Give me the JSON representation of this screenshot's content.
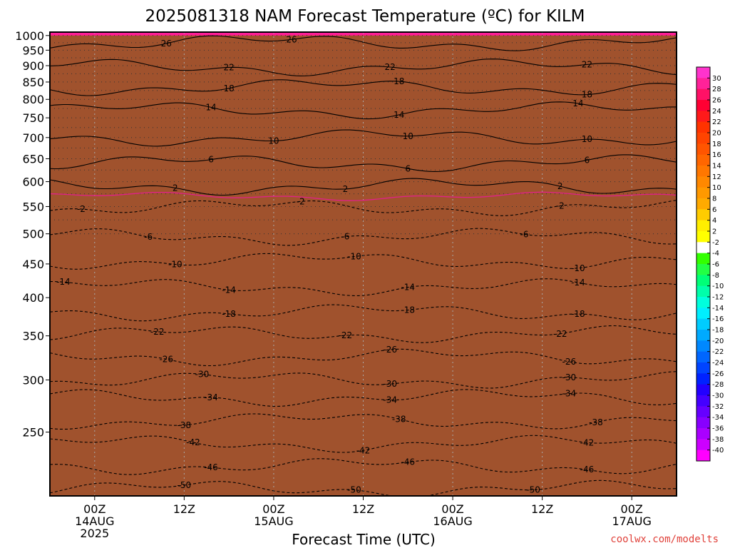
{
  "chart_data": {
    "type": "heatmap",
    "title": "2025081318 NAM Forecast Temperature (ºC) for KILM",
    "xlabel": "Forecast Time (UTC)",
    "ylabel": "",
    "credit": "coolwx.com/modelts",
    "yaxis": {
      "scale": "log-pressure",
      "range": [
        1012,
        200
      ],
      "ticks": [
        250,
        300,
        350,
        400,
        450,
        500,
        550,
        600,
        650,
        700,
        750,
        800,
        850,
        900,
        950,
        1000
      ],
      "tick_labels": [
        "250",
        "300",
        "350",
        "400",
        "450",
        "500",
        "550",
        "600",
        "650",
        "700",
        "750",
        "800",
        "850",
        "900",
        "950",
        "1000"
      ]
    },
    "xaxis": {
      "range_hours": [
        -2,
        68
      ],
      "ticks": [
        {
          "hour": 3,
          "lines": [
            "00Z",
            "14AUG",
            "2025"
          ]
        },
        {
          "hour": 13,
          "lines": [
            "12Z"
          ]
        },
        {
          "hour": 23,
          "lines": [
            "00Z",
            "15AUG"
          ]
        },
        {
          "hour": 33,
          "lines": [
            "12Z"
          ]
        },
        {
          "hour": 43,
          "lines": [
            "00Z",
            "16AUG"
          ]
        },
        {
          "hour": 53,
          "lines": [
            "12Z"
          ]
        },
        {
          "hour": 63,
          "lines": [
            "00Z",
            "17AUG"
          ]
        }
      ]
    },
    "surface_pressure": 1000,
    "grid": {
      "vertical": "dotted",
      "horizontal_every": 25
    },
    "colorbar": {
      "ticks": [
        "30",
        "28",
        "26",
        "24",
        "22",
        "20",
        "18",
        "16",
        "14",
        "12",
        "10",
        "8",
        "6",
        "4",
        "2",
        "-2",
        "-4",
        "-6",
        "-8",
        "-10",
        "-12",
        "-14",
        "-16",
        "-18",
        "-20",
        "-22",
        "-24",
        "-26",
        "-28",
        "-30",
        "-32",
        "-34",
        "-36",
        "-38",
        "-40"
      ],
      "colors": [
        "#ff33cc",
        "#ff2299",
        "#ff1166",
        "#ff0033",
        "#ff1a1a",
        "#ff3300",
        "#ff4400",
        "#ff5500",
        "#ff6600",
        "#ff7700",
        "#ff8800",
        "#ff9900",
        "#ffaa00",
        "#ffcc00",
        "#ffee00",
        "#ffff00",
        "#ffffff",
        "#33ff00",
        "#22ff44",
        "#00ff77",
        "#00ffaa",
        "#00ffdd",
        "#00eeff",
        "#00ccff",
        "#00aaff",
        "#0088ff",
        "#0066ff",
        "#0044ff",
        "#0022ff",
        "#2200ff",
        "#4400ff",
        "#6600ff",
        "#8800ff",
        "#aa00ff",
        "#cc00ff",
        "#ff00ff"
      ]
    },
    "isotherms": [
      {
        "temp": -50,
        "p": 205,
        "labels": [
          {
            "hour": 13,
            "text": "-50"
          },
          {
            "hour": 32,
            "text": "-50"
          },
          {
            "hour": 52,
            "text": "-50"
          }
        ]
      },
      {
        "temp": -46,
        "p": 222,
        "labels": [
          {
            "hour": 16,
            "text": "-46"
          },
          {
            "hour": 38,
            "text": "-46"
          },
          {
            "hour": 58,
            "text": "-46"
          }
        ]
      },
      {
        "temp": -42,
        "p": 240,
        "labels": [
          {
            "hour": 14,
            "text": "-42"
          },
          {
            "hour": 33,
            "text": "-42"
          },
          {
            "hour": 58,
            "text": "-42"
          }
        ]
      },
      {
        "temp": -38,
        "p": 260,
        "labels": [
          {
            "hour": 13,
            "text": "-38"
          },
          {
            "hour": 37,
            "text": "-38"
          },
          {
            "hour": 59,
            "text": "-38"
          }
        ]
      },
      {
        "temp": -34,
        "p": 282,
        "labels": [
          {
            "hour": 16,
            "text": "-34"
          },
          {
            "hour": 36,
            "text": "-34"
          },
          {
            "hour": 56,
            "text": "-34"
          }
        ]
      },
      {
        "temp": -30,
        "p": 300,
        "labels": [
          {
            "hour": 15,
            "text": "-30"
          },
          {
            "hour": 36,
            "text": "-30"
          },
          {
            "hour": 56,
            "text": "-30"
          }
        ]
      },
      {
        "temp": -26,
        "p": 325,
        "labels": [
          {
            "hour": 11,
            "text": "-26"
          },
          {
            "hour": 36,
            "text": "-26"
          },
          {
            "hour": 56,
            "text": "-26"
          }
        ]
      },
      {
        "temp": -22,
        "p": 352,
        "labels": [
          {
            "hour": 10,
            "text": "-22"
          },
          {
            "hour": 31,
            "text": "-22"
          },
          {
            "hour": 55,
            "text": "-22"
          }
        ]
      },
      {
        "temp": -18,
        "p": 380,
        "labels": [
          {
            "hour": 18,
            "text": "-18"
          },
          {
            "hour": 38,
            "text": "-18"
          },
          {
            "hour": 57,
            "text": "-18"
          }
        ]
      },
      {
        "temp": -14,
        "p": 415,
        "labels": [
          {
            "hour": -0.5,
            "text": "-14"
          },
          {
            "hour": 18,
            "text": "-14"
          },
          {
            "hour": 38,
            "text": "-14"
          },
          {
            "hour": 57,
            "text": "-14"
          }
        ]
      },
      {
        "temp": -10,
        "p": 455,
        "labels": [
          {
            "hour": 12,
            "text": "-10"
          },
          {
            "hour": 32,
            "text": "-10"
          },
          {
            "hour": 57,
            "text": "-10"
          }
        ]
      },
      {
        "temp": -6,
        "p": 495,
        "labels": [
          {
            "hour": 9,
            "text": "-6"
          },
          {
            "hour": 31,
            "text": "-6"
          },
          {
            "hour": 51,
            "text": "-6"
          }
        ]
      },
      {
        "temp": -2,
        "p": 548,
        "labels": [
          {
            "hour": 1.5,
            "text": "-2"
          },
          {
            "hour": 26,
            "text": "-2"
          },
          {
            "hour": 55,
            "text": "-2"
          }
        ]
      },
      {
        "temp": 2,
        "p": 590,
        "labels": [
          {
            "hour": 12,
            "text": "2"
          },
          {
            "hour": 31,
            "text": "2"
          },
          {
            "hour": 55,
            "text": "2"
          }
        ]
      },
      {
        "temp": 6,
        "p": 640,
        "labels": [
          {
            "hour": 16,
            "text": "6"
          },
          {
            "hour": 38,
            "text": "6"
          },
          {
            "hour": 58,
            "text": "6"
          }
        ]
      },
      {
        "temp": 10,
        "p": 700,
        "labels": [
          {
            "hour": 23,
            "text": "10"
          },
          {
            "hour": 38,
            "text": "10"
          },
          {
            "hour": 58,
            "text": "10"
          }
        ]
      },
      {
        "temp": 14,
        "p": 770,
        "labels": [
          {
            "hour": 16,
            "text": "14"
          },
          {
            "hour": 37,
            "text": "14"
          },
          {
            "hour": 57,
            "text": "14"
          }
        ]
      },
      {
        "temp": 18,
        "p": 835,
        "labels": [
          {
            "hour": 18,
            "text": "18"
          },
          {
            "hour": 37,
            "text": "18"
          },
          {
            "hour": 58,
            "text": "18"
          }
        ]
      },
      {
        "temp": 22,
        "p": 895,
        "labels": [
          {
            "hour": 18,
            "text": "22"
          },
          {
            "hour": 36,
            "text": "22"
          },
          {
            "hour": 58,
            "text": "22"
          }
        ]
      },
      {
        "temp": 26,
        "p": 975,
        "labels": [
          {
            "hour": 11,
            "text": "26"
          },
          {
            "hour": 25,
            "text": "26"
          }
        ]
      }
    ],
    "freezing_level_p": 570
  }
}
